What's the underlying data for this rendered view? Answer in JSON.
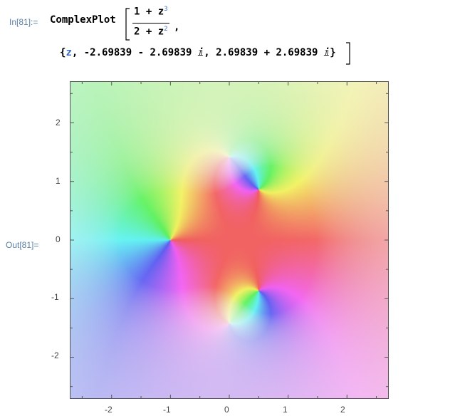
{
  "input": {
    "label": "In[81]:=",
    "function": "ComplexPlot",
    "numerator": "1 + z",
    "numerator_exp": "3",
    "denominator": "2 + z",
    "denominator_exp": "2",
    "comma": ",",
    "range_open": "{",
    "var": "z",
    "range_rest": ", -2.69839 - 2.69839 ⅈ, 2.69839 + 2.69839 ⅈ}"
  },
  "output": {
    "label": "Out[81]="
  },
  "plot": {
    "x_ticks": [
      "-2",
      "-1",
      "0",
      "1",
      "2"
    ],
    "y_ticks": [
      "2",
      "1",
      "0",
      "-1",
      "-2"
    ],
    "colors": {
      "frame": "#555555",
      "label_blue": "#5a7fa6"
    }
  }
}
